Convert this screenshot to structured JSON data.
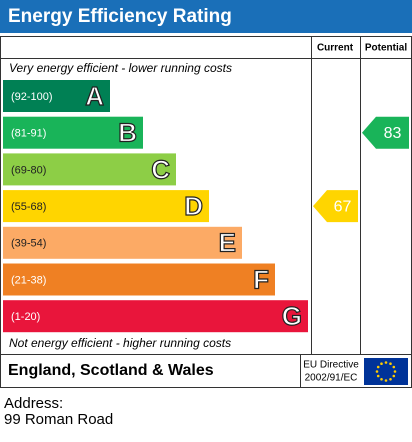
{
  "chart_data": {
    "type": "epc",
    "title": "Energy Efficiency Rating",
    "column_headers": [
      "Current",
      "Potential"
    ],
    "top_note": "Very energy efficient - lower running costs",
    "bottom_note": "Not energy efficient - higher running costs",
    "bands": [
      {
        "range": "(92-100)",
        "letter": "A",
        "color": "#008054"
      },
      {
        "range": "(81-91)",
        "letter": "B",
        "color": "#19b459"
      },
      {
        "range": "(69-80)",
        "letter": "C",
        "color": "#8dce46"
      },
      {
        "range": "(55-68)",
        "letter": "D",
        "color": "#ffd500"
      },
      {
        "range": "(39-54)",
        "letter": "E",
        "color": "#fcaa65"
      },
      {
        "range": "(21-38)",
        "letter": "F",
        "color": "#ef8023"
      },
      {
        "range": "(1-20)",
        "letter": "G",
        "color": "#e9153b"
      }
    ],
    "current": 67,
    "potential": 83,
    "region": "England, Scotland & Wales",
    "directive": [
      "EU Directive",
      "2002/91/EC"
    ],
    "address_label": "Address:",
    "address": "99 Roman Road"
  }
}
